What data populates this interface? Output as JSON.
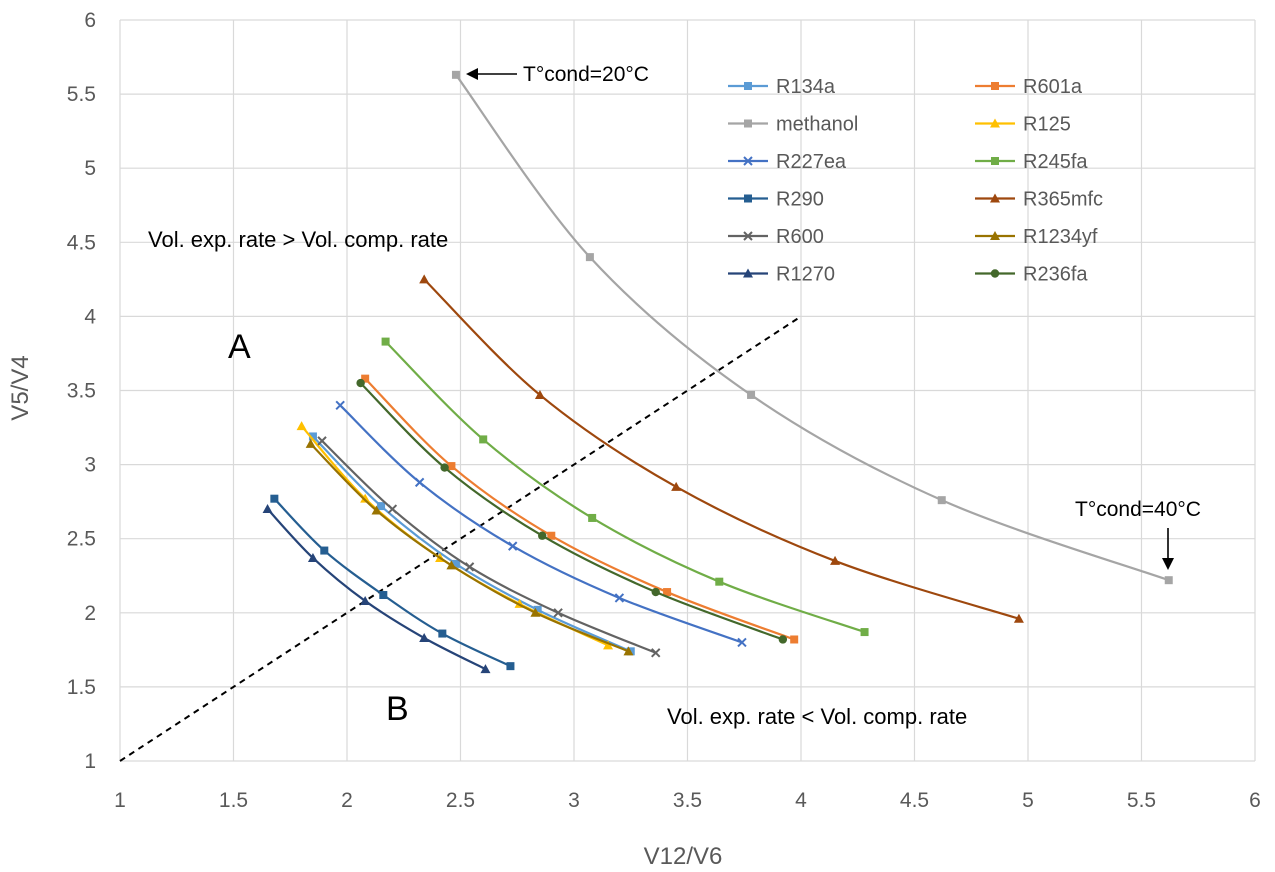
{
  "chart_data": {
    "type": "scatter",
    "xlabel": "V12/V6",
    "ylabel": "V5/V4",
    "xlim": [
      1,
      6
    ],
    "ylim": [
      1,
      6
    ],
    "x_ticks": [
      "1",
      "1.5",
      "2",
      "2.5",
      "3",
      "3.5",
      "4",
      "4.5",
      "5",
      "5.5",
      "6"
    ],
    "y_ticks": [
      "1",
      "1.5",
      "2",
      "2.5",
      "3",
      "3.5",
      "4",
      "4.5",
      "5",
      "5.5",
      "6"
    ],
    "grid": true,
    "legend_position": "top-right",
    "series": [
      {
        "name": "R134a",
        "color": "#5b9bd5",
        "marker": "square",
        "points": [
          [
            1.85,
            3.19
          ],
          [
            2.15,
            2.72
          ],
          [
            2.48,
            2.33
          ],
          [
            2.84,
            2.02
          ],
          [
            3.25,
            1.74
          ]
        ]
      },
      {
        "name": "R601a",
        "color": "#ed7d31",
        "marker": "square",
        "points": [
          [
            2.08,
            3.58
          ],
          [
            2.46,
            2.99
          ],
          [
            2.9,
            2.52
          ],
          [
            3.41,
            2.14
          ],
          [
            3.97,
            1.82
          ]
        ]
      },
      {
        "name": "methanol",
        "color": "#a5a5a5",
        "marker": "square",
        "points": [
          [
            2.48,
            5.63
          ],
          [
            3.07,
            4.4
          ],
          [
            3.78,
            3.47
          ],
          [
            4.62,
            2.76
          ],
          [
            5.62,
            2.22
          ]
        ]
      },
      {
        "name": "R125",
        "color": "#ffc000",
        "marker": "triangle",
        "points": [
          [
            1.8,
            3.26
          ],
          [
            2.08,
            2.77
          ],
          [
            2.41,
            2.37
          ],
          [
            2.76,
            2.06
          ],
          [
            3.15,
            1.78
          ]
        ]
      },
      {
        "name": "R227ea",
        "color": "#4472c4",
        "marker": "x",
        "points": [
          [
            1.97,
            3.4
          ],
          [
            2.32,
            2.88
          ],
          [
            2.73,
            2.45
          ],
          [
            3.2,
            2.1
          ],
          [
            3.74,
            1.8
          ]
        ]
      },
      {
        "name": "R245fa",
        "color": "#70ad47",
        "marker": "square",
        "points": [
          [
            2.17,
            3.83
          ],
          [
            2.6,
            3.17
          ],
          [
            3.08,
            2.64
          ],
          [
            3.64,
            2.21
          ],
          [
            4.28,
            1.87
          ]
        ]
      },
      {
        "name": "R290",
        "color": "#255e91",
        "marker": "square",
        "points": [
          [
            1.68,
            2.77
          ],
          [
            1.9,
            2.42
          ],
          [
            2.16,
            2.12
          ],
          [
            2.42,
            1.86
          ],
          [
            2.72,
            1.64
          ]
        ]
      },
      {
        "name": "R365mfc",
        "color": "#9e480e",
        "marker": "triangle",
        "points": [
          [
            2.34,
            4.25
          ],
          [
            2.85,
            3.47
          ],
          [
            3.45,
            2.85
          ],
          [
            4.15,
            2.35
          ],
          [
            4.96,
            1.96
          ]
        ]
      },
      {
        "name": "R600",
        "color": "#636363",
        "marker": "x",
        "points": [
          [
            1.89,
            3.16
          ],
          [
            2.2,
            2.7
          ],
          [
            2.54,
            2.31
          ],
          [
            2.93,
            2.0
          ],
          [
            3.36,
            1.73
          ]
        ]
      },
      {
        "name": "R1234yf",
        "color": "#997300",
        "marker": "triangle",
        "points": [
          [
            1.84,
            3.14
          ],
          [
            2.13,
            2.69
          ],
          [
            2.46,
            2.32
          ],
          [
            2.83,
            2.0
          ],
          [
            3.24,
            1.74
          ]
        ]
      },
      {
        "name": "R1270",
        "color": "#264478",
        "marker": "triangle",
        "points": [
          [
            1.65,
            2.7
          ],
          [
            1.85,
            2.37
          ],
          [
            2.08,
            2.08
          ],
          [
            2.34,
            1.83
          ],
          [
            2.61,
            1.62
          ]
        ]
      },
      {
        "name": "R236fa",
        "color": "#43682b",
        "marker": "circle",
        "points": [
          [
            2.06,
            3.55
          ],
          [
            2.43,
            2.98
          ],
          [
            2.86,
            2.52
          ],
          [
            3.36,
            2.14
          ],
          [
            3.92,
            1.82
          ]
        ]
      }
    ],
    "reference_line": {
      "style": "dashed",
      "color": "#000000",
      "points": [
        [
          1,
          1
        ],
        [
          4,
          4
        ]
      ]
    },
    "annotations": [
      {
        "text": "T°cond=20°C",
        "at": [
          2.48,
          5.63
        ]
      },
      {
        "text": "T°cond=40°C",
        "at": [
          5.62,
          2.22
        ]
      },
      {
        "text": "Vol. exp. rate > Vol. comp. rate"
      },
      {
        "text": "Vol. exp. rate < Vol. comp. rate"
      },
      {
        "text": "A"
      },
      {
        "text": "B"
      }
    ]
  }
}
